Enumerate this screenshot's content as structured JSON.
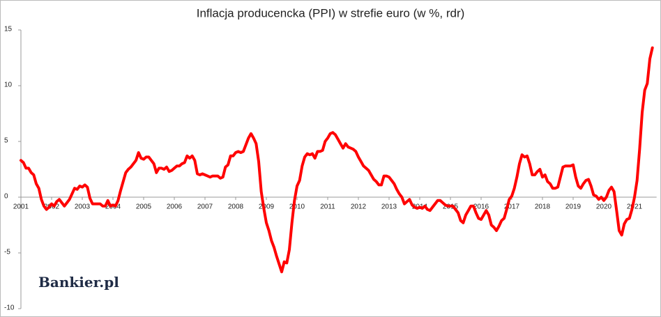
{
  "chart_data": {
    "type": "line",
    "title": "Inflacja producencka (PPI) w strefie euro (w %, rdr)",
    "logo": "Bankier.pl",
    "color": "#ff0000",
    "ylim": [
      -10,
      15
    ],
    "yticks": [
      -10,
      -5,
      0,
      5,
      10,
      15
    ],
    "categories": [
      "2001",
      null,
      null,
      null,
      null,
      null,
      null,
      null,
      null,
      null,
      null,
      null,
      "2002",
      null,
      null,
      null,
      null,
      null,
      null,
      null,
      null,
      null,
      null,
      null,
      "2003",
      null,
      null,
      null,
      null,
      null,
      null,
      null,
      null,
      null,
      null,
      null,
      "2004",
      null,
      null,
      null,
      null,
      null,
      null,
      null,
      null,
      null,
      null,
      null,
      "2005",
      null,
      null,
      null,
      null,
      null,
      null,
      null,
      null,
      null,
      null,
      null,
      "2006",
      null,
      null,
      null,
      null,
      null,
      null,
      null,
      null,
      null,
      null,
      null,
      "2007",
      null,
      null,
      null,
      null,
      null,
      null,
      null,
      null,
      null,
      null,
      null,
      "2008",
      null,
      null,
      null,
      null,
      null,
      null,
      null,
      null,
      null,
      null,
      null,
      "2009",
      null,
      null,
      null,
      null,
      null,
      null,
      null,
      null,
      null,
      null,
      null,
      "2010",
      null,
      null,
      null,
      null,
      null,
      null,
      null,
      null,
      null,
      null,
      null,
      "2011",
      null,
      null,
      null,
      null,
      null,
      null,
      null,
      null,
      null,
      null,
      null,
      "2012",
      null,
      null,
      null,
      null,
      null,
      null,
      null,
      null,
      null,
      null,
      null,
      "2013",
      null,
      null,
      null,
      null,
      null,
      null,
      null,
      null,
      null,
      null,
      null,
      "2014",
      null,
      null,
      null,
      null,
      null,
      null,
      null,
      null,
      null,
      null,
      null,
      "2015",
      null,
      null,
      null,
      null,
      null,
      null,
      null,
      null,
      null,
      null,
      null,
      "2016",
      null,
      null,
      null,
      null,
      null,
      null,
      null,
      null,
      null,
      null,
      null,
      "2017",
      null,
      null,
      null,
      null,
      null,
      null,
      null,
      null,
      null,
      null,
      null,
      "2018",
      null,
      null,
      null,
      null,
      null,
      null,
      null,
      null,
      null,
      null,
      null,
      "2019",
      null,
      null,
      null,
      null,
      null,
      null,
      null,
      null,
      null,
      null,
      null,
      "2020",
      null,
      null,
      null,
      null,
      null,
      null,
      null,
      null,
      null,
      null,
      null,
      "2021",
      null,
      null,
      null,
      null,
      null,
      null,
      null
    ],
    "values": [
      3.3,
      3.1,
      2.6,
      2.6,
      2.2,
      2.0,
      1.2,
      0.8,
      -0.2,
      -0.8,
      -1.1,
      -0.9,
      -0.6,
      -0.8,
      -0.4,
      -0.2,
      -0.5,
      -0.8,
      -0.5,
      -0.2,
      0.3,
      0.8,
      0.7,
      1.0,
      0.9,
      1.1,
      0.9,
      -0.1,
      -0.6,
      -0.6,
      -0.6,
      -0.6,
      -0.8,
      -0.8,
      -0.3,
      -0.8,
      -0.7,
      -0.8,
      -0.3,
      0.6,
      1.4,
      2.2,
      2.5,
      2.7,
      3.0,
      3.3,
      4.0,
      3.5,
      3.4,
      3.6,
      3.6,
      3.3,
      3.0,
      2.2,
      2.6,
      2.6,
      2.5,
      2.7,
      2.3,
      2.4,
      2.6,
      2.8,
      2.8,
      3.0,
      3.1,
      3.7,
      3.5,
      3.7,
      3.3,
      2.1,
      2.0,
      2.1,
      2.0,
      1.9,
      1.8,
      1.9,
      1.9,
      1.9,
      1.7,
      1.8,
      2.7,
      2.9,
      3.7,
      3.7,
      4.0,
      4.1,
      4.0,
      4.1,
      4.7,
      5.3,
      5.7,
      5.3,
      4.8,
      3.2,
      0.5,
      -1.0,
      -2.3,
      -3.0,
      -3.9,
      -4.5,
      -5.3,
      -6.0,
      -6.7,
      -5.8,
      -5.9,
      -4.7,
      -2.3,
      -0.3,
      1.0,
      1.5,
      2.8,
      3.6,
      3.9,
      3.8,
      3.9,
      3.5,
      4.1,
      4.1,
      4.2,
      5.0,
      5.3,
      5.7,
      5.8,
      5.6,
      5.2,
      4.8,
      4.4,
      4.8,
      4.5,
      4.4,
      4.3,
      4.1,
      3.6,
      3.2,
      2.8,
      2.6,
      2.4,
      2.0,
      1.6,
      1.4,
      1.1,
      1.1,
      1.9,
      1.9,
      1.8,
      1.5,
      1.2,
      0.7,
      0.3,
      0.0,
      -0.6,
      -0.4,
      -0.2,
      -0.7,
      -0.9,
      -1.0,
      -0.9,
      -1.0,
      -0.8,
      -1.1,
      -1.2,
      -0.9,
      -0.6,
      -0.3,
      -0.3,
      -0.5,
      -0.7,
      -0.8,
      -0.8,
      -0.8,
      -1.1,
      -1.4,
      -2.1,
      -2.3,
      -1.6,
      -1.2,
      -0.8,
      -0.8,
      -1.4,
      -1.9,
      -2.0,
      -1.6,
      -1.2,
      -1.6,
      -2.5,
      -2.7,
      -3.0,
      -2.6,
      -2.1,
      -1.9,
      -1.1,
      -0.2,
      0.1,
      0.8,
      1.8,
      3.0,
      3.8,
      3.6,
      3.7,
      3.0,
      2.0,
      2.0,
      2.3,
      2.5,
      1.8,
      2.0,
      1.4,
      1.2,
      0.8,
      0.8,
      0.9,
      1.8,
      2.7,
      2.8,
      2.8,
      2.8,
      2.9,
      1.8,
      1.0,
      0.8,
      1.2,
      1.5,
      1.6,
      1.0,
      0.2,
      0.1,
      -0.2,
      0.0,
      -0.3,
      0.0,
      0.6,
      0.9,
      0.5,
      -1.2,
      -3.0,
      -3.4,
      -2.4,
      -2.0,
      -1.9,
      -1.1,
      0.0,
      1.5,
      4.3,
      7.6,
      9.6,
      10.2,
      12.4,
      13.4
    ]
  }
}
